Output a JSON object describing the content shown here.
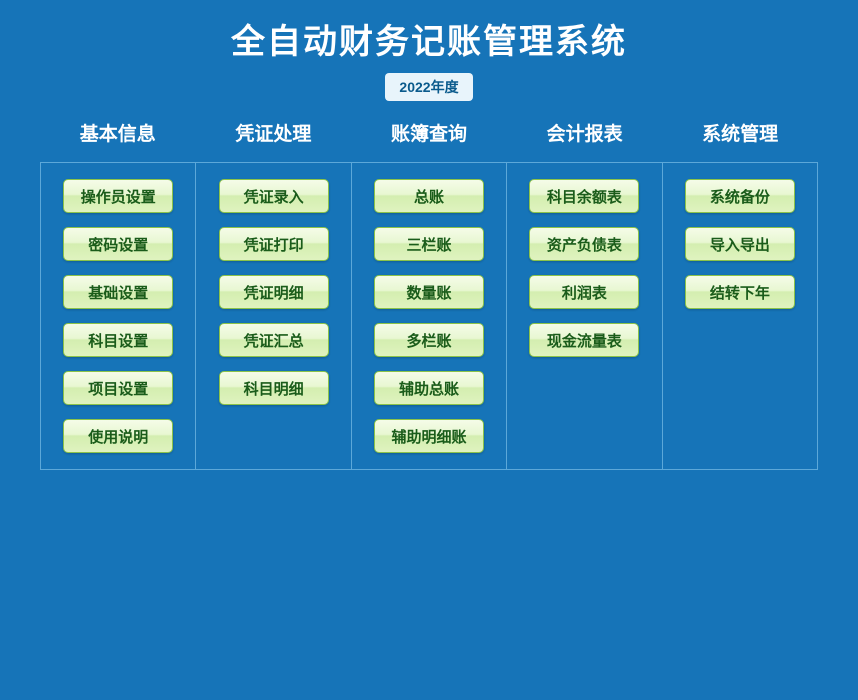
{
  "header": {
    "title": "全自动财务记账管理系统",
    "year": "2022年度"
  },
  "colors": {
    "background": "#1674b8",
    "text_white": "#ffffff",
    "badge_bg": "#e8f4fb",
    "badge_text": "#0a5a8c",
    "border": "#5ca8d9",
    "button_gradient_top": "#f5fce8",
    "button_gradient_mid1": "#e8f7d2",
    "button_gradient_mid2": "#d4eeb0",
    "button_gradient_bottom": "#dff3bf",
    "button_border": "#8bc34a",
    "button_text": "#1a5c1a"
  },
  "categories": [
    {
      "label": "基本信息",
      "items": [
        "操作员设置",
        "密码设置",
        "基础设置",
        "科目设置",
        "项目设置",
        "使用说明"
      ]
    },
    {
      "label": "凭证处理",
      "items": [
        "凭证录入",
        "凭证打印",
        "凭证明细",
        "凭证汇总",
        "科目明细"
      ]
    },
    {
      "label": "账簿查询",
      "items": [
        "总账",
        "三栏账",
        "数量账",
        "多栏账",
        "辅助总账",
        "辅助明细账"
      ]
    },
    {
      "label": "会计报表",
      "items": [
        "科目余额表",
        "资产负债表",
        "利润表",
        "现金流量表"
      ]
    },
    {
      "label": "系统管理",
      "items": [
        "系统备份",
        "导入导出",
        "结转下年"
      ]
    }
  ]
}
